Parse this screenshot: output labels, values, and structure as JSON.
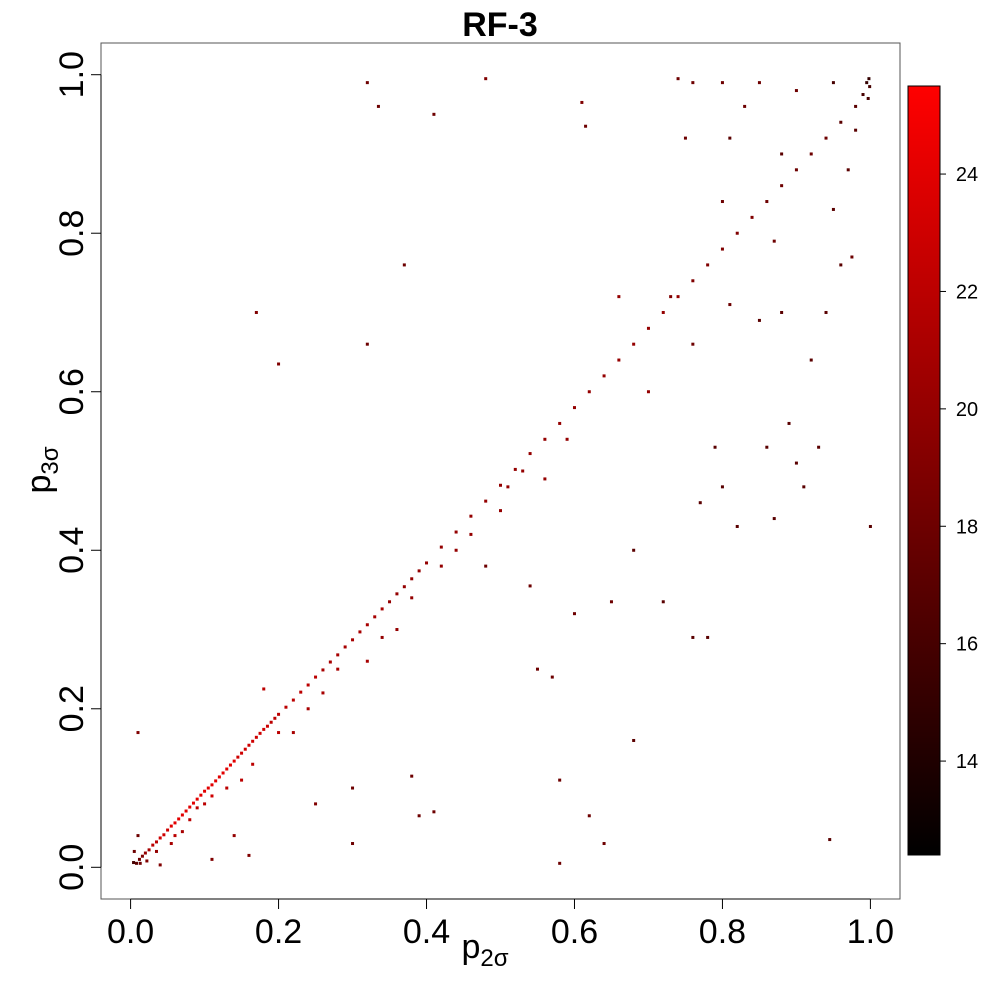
{
  "chart_data": {
    "type": "scatter",
    "title": "RF-3",
    "xlabel": {
      "base": "p",
      "sub": "2σ"
    },
    "ylabel": {
      "base": "p",
      "sub": "3σ"
    },
    "xlim": [
      -0.04,
      1.04
    ],
    "ylim": [
      -0.04,
      1.04
    ],
    "x_ticks": [
      "0.0",
      "0.2",
      "0.4",
      "0.6",
      "0.8",
      "1.0"
    ],
    "y_ticks": [
      "0.0",
      "0.2",
      "0.4",
      "0.6",
      "0.8",
      "1.0"
    ],
    "grid": false,
    "colorbar": {
      "range": [
        12.4,
        25.5
      ],
      "ticks": [
        "14",
        "16",
        "18",
        "20",
        "22",
        "24"
      ],
      "colors": [
        "#000000",
        "#ff0000"
      ]
    },
    "points": [
      [
        0.004,
        0.006,
        16
      ],
      [
        0.008,
        0.005,
        17
      ],
      [
        0.012,
        0.01,
        18
      ],
      [
        0.016,
        0.014,
        19
      ],
      [
        0.02,
        0.018,
        20
      ],
      [
        0.025,
        0.022,
        21
      ],
      [
        0.03,
        0.028,
        22
      ],
      [
        0.035,
        0.032,
        22
      ],
      [
        0.04,
        0.037,
        23
      ],
      [
        0.045,
        0.041,
        23
      ],
      [
        0.05,
        0.047,
        23
      ],
      [
        0.055,
        0.052,
        24
      ],
      [
        0.06,
        0.056,
        24
      ],
      [
        0.065,
        0.061,
        24
      ],
      [
        0.07,
        0.066,
        24
      ],
      [
        0.075,
        0.071,
        24
      ],
      [
        0.08,
        0.076,
        24
      ],
      [
        0.085,
        0.081,
        24
      ],
      [
        0.09,
        0.086,
        24
      ],
      [
        0.095,
        0.091,
        24
      ],
      [
        0.1,
        0.096,
        24
      ],
      [
        0.105,
        0.1,
        24
      ],
      [
        0.11,
        0.104,
        24
      ],
      [
        0.115,
        0.109,
        24
      ],
      [
        0.12,
        0.114,
        24
      ],
      [
        0.125,
        0.119,
        24
      ],
      [
        0.13,
        0.124,
        24
      ],
      [
        0.135,
        0.129,
        24
      ],
      [
        0.14,
        0.134,
        24
      ],
      [
        0.145,
        0.139,
        23
      ],
      [
        0.15,
        0.144,
        23
      ],
      [
        0.155,
        0.149,
        23
      ],
      [
        0.16,
        0.154,
        23
      ],
      [
        0.165,
        0.159,
        23
      ],
      [
        0.17,
        0.164,
        23
      ],
      [
        0.175,
        0.169,
        23
      ],
      [
        0.18,
        0.174,
        23
      ],
      [
        0.185,
        0.178,
        23
      ],
      [
        0.19,
        0.183,
        22
      ],
      [
        0.195,
        0.188,
        22
      ],
      [
        0.2,
        0.193,
        22
      ],
      [
        0.21,
        0.202,
        22
      ],
      [
        0.22,
        0.211,
        22
      ],
      [
        0.23,
        0.221,
        22
      ],
      [
        0.24,
        0.23,
        22
      ],
      [
        0.25,
        0.24,
        22
      ],
      [
        0.26,
        0.249,
        21
      ],
      [
        0.27,
        0.259,
        21
      ],
      [
        0.28,
        0.268,
        21
      ],
      [
        0.29,
        0.278,
        21
      ],
      [
        0.3,
        0.287,
        21
      ],
      [
        0.31,
        0.297,
        21
      ],
      [
        0.32,
        0.306,
        21
      ],
      [
        0.33,
        0.316,
        21
      ],
      [
        0.34,
        0.326,
        21
      ],
      [
        0.35,
        0.335,
        20
      ],
      [
        0.36,
        0.345,
        20
      ],
      [
        0.37,
        0.354,
        20
      ],
      [
        0.38,
        0.364,
        20
      ],
      [
        0.39,
        0.374,
        20
      ],
      [
        0.4,
        0.384,
        20
      ],
      [
        0.42,
        0.404,
        20
      ],
      [
        0.44,
        0.423,
        20
      ],
      [
        0.46,
        0.443,
        20
      ],
      [
        0.48,
        0.462,
        20
      ],
      [
        0.5,
        0.482,
        20
      ],
      [
        0.52,
        0.502,
        20
      ],
      [
        0.54,
        0.522,
        20
      ],
      [
        0.56,
        0.54,
        20
      ],
      [
        0.58,
        0.56,
        20
      ],
      [
        0.6,
        0.58,
        20
      ],
      [
        0.62,
        0.6,
        20
      ],
      [
        0.64,
        0.62,
        20
      ],
      [
        0.66,
        0.64,
        20
      ],
      [
        0.68,
        0.66,
        20
      ],
      [
        0.7,
        0.68,
        20
      ],
      [
        0.72,
        0.7,
        20
      ],
      [
        0.74,
        0.72,
        20
      ],
      [
        0.76,
        0.74,
        19
      ],
      [
        0.78,
        0.76,
        19
      ],
      [
        0.8,
        0.78,
        19
      ],
      [
        0.82,
        0.8,
        19
      ],
      [
        0.84,
        0.82,
        19
      ],
      [
        0.86,
        0.84,
        18
      ],
      [
        0.88,
        0.86,
        18
      ],
      [
        0.9,
        0.88,
        18
      ],
      [
        0.92,
        0.9,
        18
      ],
      [
        0.94,
        0.92,
        18
      ],
      [
        0.96,
        0.94,
        17
      ],
      [
        0.98,
        0.96,
        17
      ],
      [
        0.99,
        0.975,
        16
      ],
      [
        0.995,
        0.99,
        15
      ],
      [
        0.998,
        0.995,
        15
      ],
      [
        0.999,
        0.985,
        16
      ],
      [
        0.997,
        0.97,
        16
      ],
      [
        0.013,
        0.005,
        18
      ],
      [
        0.022,
        0.008,
        19
      ],
      [
        0.035,
        0.02,
        20
      ],
      [
        0.04,
        0.003,
        19
      ],
      [
        0.055,
        0.03,
        21
      ],
      [
        0.06,
        0.04,
        22
      ],
      [
        0.07,
        0.045,
        21
      ],
      [
        0.08,
        0.06,
        22
      ],
      [
        0.09,
        0.075,
        22
      ],
      [
        0.1,
        0.08,
        22
      ],
      [
        0.11,
        0.01,
        19
      ],
      [
        0.11,
        0.09,
        23
      ],
      [
        0.13,
        0.1,
        22
      ],
      [
        0.14,
        0.04,
        20
      ],
      [
        0.15,
        0.11,
        22
      ],
      [
        0.16,
        0.015,
        19
      ],
      [
        0.165,
        0.13,
        22
      ],
      [
        0.18,
        0.225,
        22
      ],
      [
        0.2,
        0.17,
        22
      ],
      [
        0.22,
        0.17,
        21
      ],
      [
        0.24,
        0.2,
        21
      ],
      [
        0.25,
        0.08,
        19
      ],
      [
        0.26,
        0.22,
        21
      ],
      [
        0.28,
        0.25,
        21
      ],
      [
        0.3,
        0.1,
        18
      ],
      [
        0.3,
        0.03,
        18
      ],
      [
        0.32,
        0.26,
        21
      ],
      [
        0.34,
        0.29,
        20
      ],
      [
        0.36,
        0.3,
        20
      ],
      [
        0.38,
        0.34,
        20
      ],
      [
        0.38,
        0.115,
        18
      ],
      [
        0.39,
        0.065,
        18
      ],
      [
        0.41,
        0.07,
        18
      ],
      [
        0.42,
        0.38,
        20
      ],
      [
        0.44,
        0.4,
        20
      ],
      [
        0.46,
        0.42,
        20
      ],
      [
        0.48,
        0.38,
        18
      ],
      [
        0.5,
        0.45,
        20
      ],
      [
        0.51,
        0.48,
        20
      ],
      [
        0.53,
        0.5,
        20
      ],
      [
        0.54,
        0.355,
        18
      ],
      [
        0.55,
        0.25,
        18
      ],
      [
        0.57,
        0.24,
        18
      ],
      [
        0.56,
        0.49,
        20
      ],
      [
        0.58,
        0.11,
        18
      ],
      [
        0.58,
        0.005,
        18
      ],
      [
        0.59,
        0.54,
        20
      ],
      [
        0.6,
        0.32,
        18
      ],
      [
        0.62,
        0.065,
        18
      ],
      [
        0.64,
        0.03,
        18
      ],
      [
        0.65,
        0.335,
        18
      ],
      [
        0.66,
        0.72,
        20
      ],
      [
        0.68,
        0.4,
        17
      ],
      [
        0.68,
        0.16,
        17
      ],
      [
        0.7,
        0.6,
        20
      ],
      [
        0.72,
        0.335,
        17
      ],
      [
        0.73,
        0.72,
        19
      ],
      [
        0.75,
        0.92,
        18
      ],
      [
        0.76,
        0.29,
        17
      ],
      [
        0.76,
        0.66,
        18
      ],
      [
        0.77,
        0.46,
        17
      ],
      [
        0.78,
        0.29,
        17
      ],
      [
        0.79,
        0.53,
        17
      ],
      [
        0.8,
        0.48,
        17
      ],
      [
        0.8,
        0.84,
        18
      ],
      [
        0.81,
        0.92,
        17
      ],
      [
        0.81,
        0.71,
        18
      ],
      [
        0.82,
        0.43,
        17
      ],
      [
        0.83,
        0.96,
        18
      ],
      [
        0.85,
        0.69,
        17
      ],
      [
        0.86,
        0.53,
        17
      ],
      [
        0.87,
        0.44,
        17
      ],
      [
        0.87,
        0.79,
        18
      ],
      [
        0.88,
        0.7,
        17
      ],
      [
        0.88,
        0.9,
        17
      ],
      [
        0.89,
        0.56,
        17
      ],
      [
        0.9,
        0.51,
        17
      ],
      [
        0.91,
        0.48,
        17
      ],
      [
        0.92,
        0.64,
        17
      ],
      [
        0.93,
        0.53,
        17
      ],
      [
        0.94,
        0.7,
        17
      ],
      [
        0.945,
        0.035,
        17
      ],
      [
        0.95,
        0.83,
        17
      ],
      [
        0.96,
        0.76,
        17
      ],
      [
        0.97,
        0.88,
        17
      ],
      [
        0.975,
        0.77,
        18
      ],
      [
        0.98,
        0.93,
        17
      ],
      [
        1.0,
        0.43,
        17
      ],
      [
        0.74,
        0.995,
        18
      ],
      [
        0.76,
        0.99,
        18
      ],
      [
        0.8,
        0.99,
        18
      ],
      [
        0.85,
        0.99,
        18
      ],
      [
        0.9,
        0.98,
        18
      ],
      [
        0.95,
        0.99,
        16
      ],
      [
        0.32,
        0.99,
        18
      ],
      [
        0.335,
        0.96,
        18
      ],
      [
        0.41,
        0.95,
        18
      ],
      [
        0.48,
        0.995,
        19
      ],
      [
        0.61,
        0.965,
        19
      ],
      [
        0.615,
        0.935,
        18
      ],
      [
        0.37,
        0.76,
        18
      ],
      [
        0.17,
        0.7,
        19
      ],
      [
        0.2,
        0.635,
        19
      ],
      [
        0.32,
        0.66,
        18
      ],
      [
        0.01,
        0.17,
        19
      ],
      [
        0.01,
        0.04,
        18
      ],
      [
        0.005,
        0.02,
        18
      ]
    ]
  }
}
